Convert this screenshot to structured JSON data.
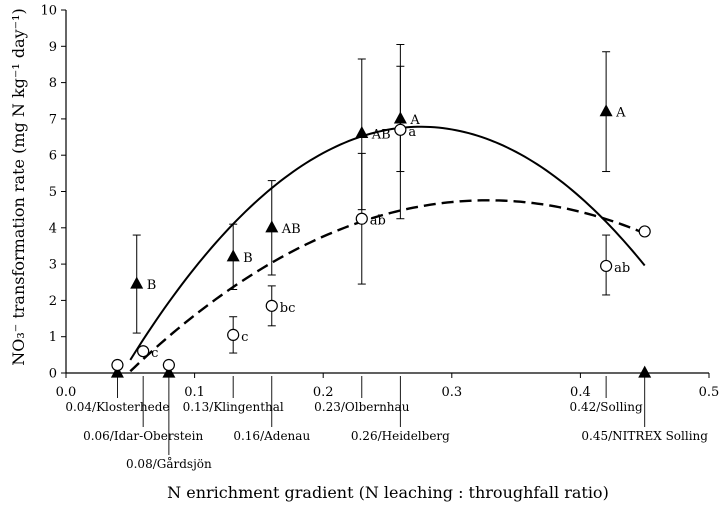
{
  "chart_data": {
    "type": "scatter",
    "xlabel": "N enrichment gradient (N leaching : throughfall ratio)",
    "ylabel": "NO₃⁻ transformation rate (mg N kg⁻¹ day⁻¹)",
    "xlim": [
      0,
      0.5
    ],
    "ylim": [
      0,
      10
    ],
    "x_ticks": [
      0.0,
      0.1,
      0.2,
      0.3,
      0.4,
      0.5
    ],
    "x_tick_labels": [
      "0.0",
      "0.1",
      "0.2",
      "0.3",
      "0.4",
      "0.5"
    ],
    "y_ticks": [
      0,
      1,
      2,
      3,
      4,
      5,
      6,
      7,
      8,
      9,
      10
    ],
    "y_tick_labels": [
      "0",
      "1",
      "2",
      "3",
      "4",
      "5",
      "6",
      "7",
      "8",
      "9",
      "10"
    ],
    "grid": false,
    "legend": "none",
    "sites": [
      {
        "x": 0.04,
        "label": "0.04/Klosterhede",
        "row": 0
      },
      {
        "x": 0.06,
        "label": "0.06/Idar-Oberstein",
        "row": 1
      },
      {
        "x": 0.08,
        "label": "0.08/Gårdsjön",
        "row": 2
      },
      {
        "x": 0.13,
        "label": "0.13/Klingenthal",
        "row": 0
      },
      {
        "x": 0.16,
        "label": "0.16/Adenau",
        "row": 1
      },
      {
        "x": 0.23,
        "label": "0.23/Olbernhau",
        "row": 0
      },
      {
        "x": 0.26,
        "label": "0.26/Heidelberg",
        "row": 1
      },
      {
        "x": 0.42,
        "label": "0.42/Solling",
        "row": 0
      },
      {
        "x": 0.45,
        "label": "0.45/NITREX Solling",
        "row": 1
      }
    ],
    "series": [
      {
        "marker": "filled-triangle",
        "points": [
          {
            "x": 0.04,
            "y": 0.0,
            "err_low": null,
            "err_high": null,
            "label": ""
          },
          {
            "x": 0.055,
            "y": 2.45,
            "err_low": 1.1,
            "err_high": 3.8,
            "label": "B"
          },
          {
            "x": 0.08,
            "y": 0.0,
            "err_low": null,
            "err_high": null,
            "label": ""
          },
          {
            "x": 0.13,
            "y": 3.2,
            "err_low": 2.3,
            "err_high": 4.1,
            "label": "B"
          },
          {
            "x": 0.16,
            "y": 4.0,
            "err_low": 2.7,
            "err_high": 5.3,
            "label": "AB"
          },
          {
            "x": 0.23,
            "y": 6.6,
            "err_low": 4.5,
            "err_high": 8.65,
            "label": "AB"
          },
          {
            "x": 0.26,
            "y": 7.0,
            "err_low": 5.55,
            "err_high": 9.05,
            "label": "A"
          },
          {
            "x": 0.42,
            "y": 7.2,
            "err_low": 5.55,
            "err_high": 8.85,
            "label": "A"
          },
          {
            "x": 0.45,
            "y": 0.0,
            "err_low": null,
            "err_high": null,
            "label": ""
          }
        ]
      },
      {
        "marker": "open-circle",
        "points": [
          {
            "x": 0.04,
            "y": 0.22,
            "err_low": null,
            "err_high": null,
            "label": ""
          },
          {
            "x": 0.06,
            "y": 0.6,
            "err_low": null,
            "err_high": null,
            "label": "c"
          },
          {
            "x": 0.08,
            "y": 0.22,
            "err_low": null,
            "err_high": null,
            "label": ""
          },
          {
            "x": 0.13,
            "y": 1.05,
            "err_low": 0.55,
            "err_high": 1.55,
            "label": "c"
          },
          {
            "x": 0.16,
            "y": 1.85,
            "err_low": 1.3,
            "err_high": 2.4,
            "label": "bc"
          },
          {
            "x": 0.23,
            "y": 4.25,
            "err_low": 2.45,
            "err_high": 6.05,
            "label": "ab"
          },
          {
            "x": 0.26,
            "y": 6.7,
            "err_low": 4.25,
            "err_high": 8.45,
            "label": "a"
          },
          {
            "x": 0.42,
            "y": 2.95,
            "err_low": 2.15,
            "err_high": 3.8,
            "label": "ab"
          },
          {
            "x": 0.45,
            "y": 3.9,
            "err_low": null,
            "err_high": null,
            "label": ""
          }
        ]
      }
    ],
    "fits": [
      {
        "style": "solid",
        "x_range": [
          0.05,
          0.45
        ],
        "coef": [
          -2.8,
          69.5,
          -126
        ]
      },
      {
        "style": "dashed",
        "x_range": [
          0.05,
          0.45
        ],
        "coef": [
          -1.8,
          40.0,
          -61
        ]
      }
    ]
  }
}
